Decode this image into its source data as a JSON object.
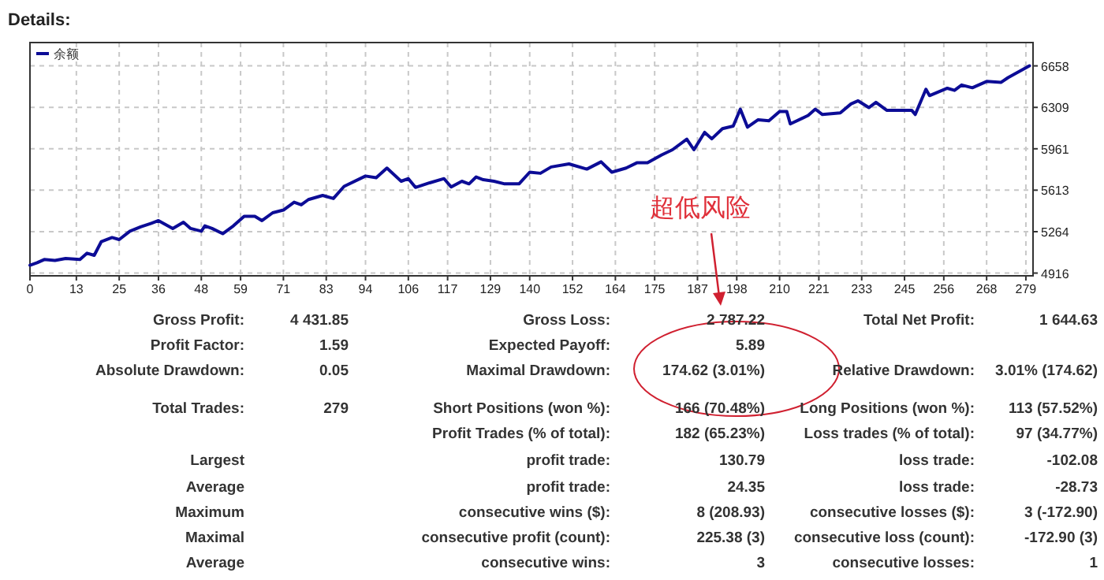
{
  "chart_data": {
    "type": "line",
    "title": "Details:",
    "xlim": [
      0,
      281
    ],
    "ylim": [
      4893,
      6854
    ],
    "xticks": [
      0,
      13,
      25,
      36,
      48,
      59,
      71,
      83,
      94,
      106,
      117,
      129,
      140,
      152,
      164,
      175,
      187,
      198,
      210,
      221,
      233,
      245,
      256,
      268,
      279
    ],
    "yticks": [
      4916,
      5264,
      5613,
      5961,
      6309,
      6658
    ],
    "grid": true,
    "legend": "top left",
    "line_style": "solid",
    "marker": "none",
    "series": [
      {
        "name": "余额",
        "color": "#0c0c96",
        "x": [
          0,
          2,
          4,
          7,
          10,
          14,
          16,
          18,
          20,
          23,
          25,
          28,
          31,
          34,
          36,
          40,
          43,
          45,
          48,
          49,
          51,
          54,
          57,
          60,
          63,
          65,
          68,
          71,
          74,
          76,
          78,
          82,
          85,
          88,
          94,
          97,
          100,
          104,
          106,
          108,
          112,
          116,
          118,
          121,
          123,
          125,
          127,
          130,
          133,
          137,
          140,
          143,
          146,
          151,
          156,
          160,
          163,
          167,
          170,
          173,
          177,
          180,
          184,
          186,
          189,
          191,
          194,
          197,
          199,
          201,
          204,
          207,
          210,
          212,
          213,
          218,
          220,
          222,
          227,
          230,
          232,
          235,
          237,
          240,
          247,
          248,
          251,
          252,
          257,
          259,
          261,
          264,
          268,
          272,
          274,
          278,
          280
        ],
        "values": [
          4982,
          5003,
          5030,
          5022,
          5039,
          5030,
          5083,
          5065,
          5181,
          5215,
          5198,
          5268,
          5304,
          5335,
          5357,
          5291,
          5344,
          5291,
          5268,
          5313,
          5291,
          5247,
          5313,
          5393,
          5393,
          5357,
          5423,
          5446,
          5512,
          5490,
          5534,
          5569,
          5543,
          5645,
          5732,
          5718,
          5799,
          5688,
          5710,
          5636,
          5675,
          5710,
          5640,
          5688,
          5666,
          5724,
          5701,
          5688,
          5666,
          5666,
          5764,
          5755,
          5808,
          5834,
          5790,
          5851,
          5764,
          5799,
          5843,
          5843,
          5910,
          5953,
          6042,
          5953,
          6099,
          6045,
          6130,
          6152,
          6294,
          6143,
          6205,
          6196,
          6275,
          6275,
          6170,
          6241,
          6294,
          6249,
          6263,
          6338,
          6364,
          6307,
          6351,
          6285,
          6285,
          6249,
          6461,
          6408,
          6470,
          6452,
          6497,
          6474,
          6527,
          6519,
          6559,
          6625,
          6658
        ]
      }
    ],
    "annotations": [
      "超低风险",
      "Gross Profit:",
      "4 431.85",
      "Gross Loss:",
      "2 787.22",
      "Total Net Profit:",
      "1 644.63",
      "Profit Factor:",
      "1.59",
      "Expected Payoff:",
      "5.89",
      "Absolute Drawdown:",
      "0.05",
      "Maximal Drawdown:",
      "174.62 (3.01%)",
      "Relative Drawdown:",
      "3.01% (174.62)",
      "Total Trades:",
      "279",
      "Short Positions (won %):",
      "166 (70.48%)",
      "Long Positions (won %):",
      "113 (57.52%)",
      "Profit Trades (% of total):",
      "182 (65.23%)",
      "Loss trades (% of total):",
      "97 (34.77%)",
      "Largest",
      "profit trade:",
      "130.79",
      "loss trade:",
      "-102.08",
      "Average",
      "profit trade:",
      "24.35",
      "loss trade:",
      "-28.73",
      "Maximum",
      "consecutive wins ($):",
      "8 (208.93)",
      "consecutive losses ($):",
      "3 (-172.90)",
      "Maximal",
      "consecutive profit (count):",
      "225.38 (3)",
      "consecutive loss (count):",
      "-172.90 (3)",
      "Average",
      "consecutive wins:",
      "3",
      "consecutive losses:",
      "1"
    ]
  }
}
